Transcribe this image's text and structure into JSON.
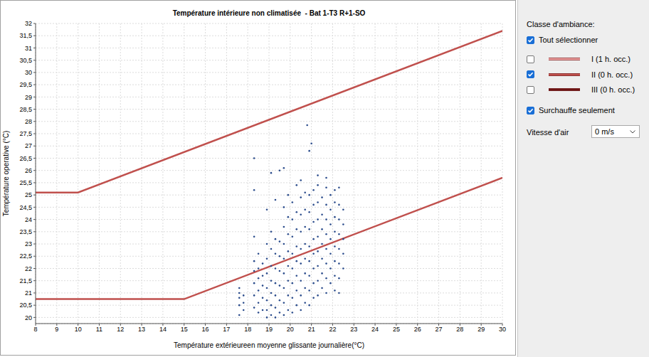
{
  "chart_data": {
    "type": "scatter",
    "title": "Température intérieure non climatisée  - Bat 1-T3 R+1-SO",
    "x_label": "Température extérieureen moyenne glissante journalière(°C)",
    "y_label": "Température operative (°C)",
    "xlim": [
      8,
      30
    ],
    "xticks": [
      8,
      9,
      10,
      11,
      12,
      13,
      14,
      15,
      16,
      17,
      18,
      19,
      20,
      21,
      22,
      23,
      24,
      25,
      26,
      27,
      28,
      29,
      30
    ],
    "ylim": [
      19.75,
      32
    ],
    "yticks": [
      20,
      {
        "value": 20.5,
        "label": "20,5"
      },
      21,
      {
        "value": 21.5,
        "label": "21,5"
      },
      22,
      {
        "value": 22.5,
        "label": "22,5"
      },
      23,
      {
        "value": 23.5,
        "label": "23,5"
      },
      24,
      {
        "value": 24.5,
        "label": "24,5"
      },
      25,
      {
        "value": 25.5,
        "label": "25,5"
      },
      26,
      {
        "value": 26.5,
        "label": "26,5"
      },
      27,
      {
        "value": 27.5,
        "label": "27,5"
      },
      28,
      {
        "value": 28.5,
        "label": "28,5"
      },
      29,
      {
        "value": 29.5,
        "label": "29,5"
      },
      30,
      {
        "value": 30.5,
        "label": "30,5"
      },
      31,
      {
        "value": 31.5,
        "label": "31,5"
      },
      32
    ],
    "grid": true,
    "series": [
      {
        "type": "scatter",
        "color": "#2b4c8c",
        "marker": "dot",
        "x": [
          17.6,
          17.6,
          17.6,
          17.6,
          17.6,
          17.8,
          17.8,
          17.8,
          18.3,
          18.3,
          18.3,
          18.3,
          18.3,
          18.3,
          18.3,
          18.3,
          18.5,
          18.5,
          18.5,
          18.5,
          18.5,
          18.5,
          18.7,
          18.7,
          18.7,
          18.7,
          18.7,
          18.9,
          18.9,
          18.9,
          18.9,
          18.9,
          18.9,
          18.9,
          18.9,
          19.1,
          19.1,
          19.1,
          19.1,
          19.1,
          19.1,
          19.1,
          19.1,
          19.3,
          19.3,
          19.3,
          19.3,
          19.3,
          19.3,
          19.3,
          19.3,
          19.5,
          19.5,
          19.5,
          19.5,
          19.5,
          19.5,
          19.5,
          19.7,
          19.7,
          19.7,
          19.7,
          19.7,
          19.7,
          19.7,
          19.7,
          19.7,
          19.9,
          19.9,
          19.9,
          19.9,
          19.9,
          19.9,
          19.9,
          19.9,
          20.1,
          20.1,
          20.1,
          20.1,
          20.1,
          20.1,
          20.1,
          20.1,
          20.3,
          20.3,
          20.3,
          20.3,
          20.3,
          20.3,
          20.3,
          20.3,
          20.5,
          20.5,
          20.5,
          20.5,
          20.5,
          20.5,
          20.5,
          20.5,
          20.5,
          20.7,
          20.7,
          20.7,
          20.7,
          20.7,
          20.7,
          20.7,
          20.7,
          20.8,
          20.9,
          20.9,
          20.9,
          20.9,
          20.9,
          20.9,
          20.9,
          20.9,
          20.9,
          21.0,
          21.1,
          21.1,
          21.1,
          21.1,
          21.1,
          21.1,
          21.1,
          21.1,
          21.3,
          21.3,
          21.3,
          21.3,
          21.3,
          21.3,
          21.3,
          21.3,
          21.3,
          21.5,
          21.5,
          21.5,
          21.5,
          21.5,
          21.5,
          21.5,
          21.7,
          21.7,
          21.7,
          21.7,
          21.7,
          21.7,
          21.7,
          21.7,
          21.7,
          21.9,
          21.9,
          21.9,
          21.9,
          21.9,
          21.9,
          21.9,
          22.1,
          22.1,
          22.1,
          22.1,
          22.1,
          22.1,
          22.1,
          22.1,
          22.3,
          22.3,
          22.3,
          22.3,
          22.3,
          22.3,
          22.3,
          22.3,
          22.5,
          22.5,
          22.5,
          22.5,
          22.5
        ],
        "values": [
          20.1,
          20.5,
          20.8,
          21.0,
          21.2,
          20.3,
          20.6,
          20.9,
          20.4,
          20.9,
          21.4,
          21.9,
          22.3,
          23.3,
          25.2,
          26.5,
          20.2,
          20.6,
          21.1,
          21.6,
          22.0,
          22.6,
          20.3,
          20.8,
          21.3,
          21.7,
          22.2,
          20.0,
          20.3,
          20.7,
          21.2,
          21.8,
          22.4,
          23.0,
          24.4,
          20.1,
          20.5,
          21.0,
          21.5,
          22.1,
          22.8,
          23.5,
          25.9,
          20.0,
          20.4,
          20.9,
          21.4,
          22.0,
          22.6,
          23.2,
          24.8,
          20.2,
          20.7,
          21.3,
          21.9,
          22.5,
          23.1,
          26.0,
          20.1,
          20.6,
          21.2,
          21.8,
          22.4,
          23.0,
          23.7,
          24.5,
          26.1,
          20.3,
          20.9,
          21.5,
          22.1,
          22.7,
          23.4,
          24.1,
          25.0,
          20.2,
          20.8,
          21.4,
          22.0,
          22.6,
          23.3,
          24.0,
          24.7,
          20.5,
          21.1,
          21.7,
          22.3,
          22.9,
          23.6,
          24.3,
          25.4,
          20.3,
          20.9,
          21.5,
          22.2,
          22.8,
          23.5,
          24.2,
          24.9,
          25.6,
          20.6,
          21.2,
          21.8,
          22.4,
          23.0,
          23.7,
          24.4,
          25.1,
          27.85,
          20.5,
          21.1,
          21.7,
          22.3,
          22.9,
          23.6,
          24.3,
          25.0,
          26.8,
          27.1,
          20.8,
          21.4,
          22.0,
          22.6,
          23.2,
          23.9,
          24.6,
          25.2,
          20.9,
          21.5,
          22.1,
          22.7,
          23.3,
          24.0,
          24.7,
          25.4,
          25.8,
          21.2,
          21.8,
          22.4,
          23.0,
          23.6,
          24.2,
          24.9,
          21.0,
          21.6,
          22.2,
          22.8,
          23.4,
          24.0,
          24.6,
          25.3,
          25.7,
          21.4,
          22.0,
          22.6,
          23.2,
          23.8,
          24.4,
          25.0,
          21.1,
          21.7,
          22.3,
          22.9,
          23.5,
          24.1,
          24.7,
          25.2,
          21.0,
          21.6,
          22.2,
          22.8,
          23.4,
          24.0,
          24.6,
          25.3,
          22.0,
          22.6,
          23.2,
          23.8,
          24.4
        ]
      },
      {
        "type": "line",
        "color": "#c0504d",
        "line_style": "solid",
        "x": [
          8,
          10,
          30
        ],
        "values": [
          25.1,
          25.1,
          31.7
        ]
      },
      {
        "type": "line",
        "color": "#c0504d",
        "line_style": "solid",
        "x": [
          8,
          15,
          30
        ],
        "values": [
          20.75,
          20.75,
          25.7
        ]
      }
    ]
  },
  "panel": {
    "title": "Classe d'ambiance:",
    "select_all": {
      "label": "Tout sélectionner",
      "checked": true
    },
    "classes": [
      {
        "label": "I (1 h. occ.)",
        "color": "#f2a5a5",
        "checked": false
      },
      {
        "label": "II (0 h. occ.)",
        "color": "#c0504d",
        "checked": true
      },
      {
        "label": "III (0 h. occ.)",
        "color": "#6e1414",
        "checked": false
      }
    ],
    "overheating": {
      "label": "Surchauffe seulement",
      "checked": true
    },
    "air_speed": {
      "label": "Vitesse d'air",
      "value": "0 m/s"
    }
  }
}
